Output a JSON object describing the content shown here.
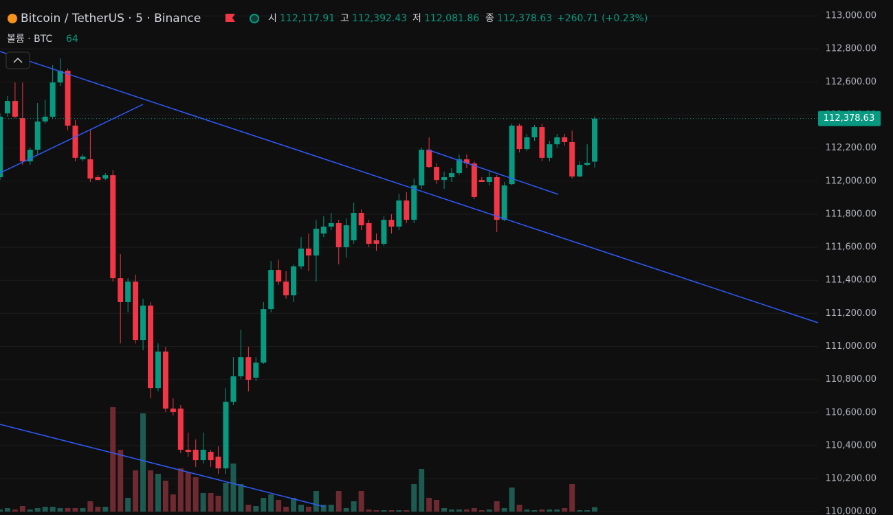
{
  "header": {
    "title": "Bitcoin / TetherUS · 5 · Binance",
    "open_label": "시",
    "open": "112,117.91",
    "high_label": "고",
    "high": "112,392.43",
    "low_label": "저",
    "low": "112,081.86",
    "close_label": "종",
    "close": "112,378.63",
    "change": "+260.71 (+0.23%)",
    "volume_label": "볼륨 · BTC",
    "price_tag": "112,378.63"
  },
  "chart_data": {
    "type": "candlestick",
    "up_color": "#089981",
    "down_color": "#f23645",
    "volume_up_color": "#1d5a52",
    "volume_down_color": "#6e2a30",
    "ylim": [
      109980,
      113096
    ],
    "yticks": [
      {
        "value": 113000,
        "label": "113,000.00"
      },
      {
        "value": 112800,
        "label": "112,800.00"
      },
      {
        "value": 112600,
        "label": "112,600.00"
      },
      {
        "value": 112400,
        "label": "112,400.00"
      },
      {
        "value": 112200,
        "label": "112,200.00"
      },
      {
        "value": 112000,
        "label": "112,000.00"
      },
      {
        "value": 111800,
        "label": "111,800.00"
      },
      {
        "value": 111600,
        "label": "111,600.00"
      },
      {
        "value": 111400,
        "label": "111,400.00"
      },
      {
        "value": 111200,
        "label": "111,200.00"
      },
      {
        "value": 111000,
        "label": "111,000.00"
      },
      {
        "value": 110800,
        "label": "110,800.00"
      },
      {
        "value": 110600,
        "label": "110,600.00"
      },
      {
        "value": 110400,
        "label": "110,400.00"
      },
      {
        "value": 110200,
        "label": "110,200.00"
      },
      {
        "value": 110000,
        "label": "110,000.00"
      }
    ],
    "grid": true,
    "open": [
      112024,
      112410,
      112485,
      112381,
      112120,
      112190,
      112361,
      112390,
      112597,
      112668,
      112336,
      112132,
      112132,
      112024,
      112016,
      112036,
      111413,
      111268,
      111392,
      111039,
      111247,
      110748,
      110969,
      110624,
      110624,
      110375,
      110375,
      110312,
      110362,
      110333,
      110262,
      110665,
      110819,
      110935,
      110811,
      110902,
      111226,
      111463,
      111392,
      111309,
      111484,
      111592,
      111550,
      111683,
      111725,
      111746,
      111600,
      111642,
      111808,
      111746,
      111642,
      111621,
      111766,
      111725,
      111883,
      111766,
      111974,
      112190,
      112086,
      112007,
      112024,
      112049,
      112132,
      112107,
      112007,
      111995,
      112024,
      111766,
      111982,
      112336,
      112194,
      112265,
      112327,
      112141,
      112223,
      112265,
      112236,
      112028,
      112099,
      112117.91
    ],
    "high": [
      112410,
      112514,
      112597,
      112597,
      112203,
      112473,
      112493,
      112701,
      112743,
      112680,
      112369,
      112161,
      112307,
      112036,
      112049,
      112066,
      111559,
      111413,
      111434,
      111289,
      111268,
      111018,
      110998,
      110686,
      110645,
      110478,
      110437,
      110478,
      110375,
      110395,
      110748,
      110935,
      111101,
      110998,
      110935,
      111268,
      111517,
      111525,
      111455,
      111496,
      111662,
      111683,
      111766,
      111787,
      111808,
      111766,
      111775,
      111870,
      111829,
      111766,
      111683,
      111787,
      111800,
      111924,
      111933,
      112016,
      112203,
      112265,
      112107,
      112057,
      112078,
      112161,
      112161,
      112120,
      112024,
      112057,
      112036,
      111995,
      112348,
      112348,
      112286,
      112340,
      112348,
      112244,
      112286,
      112286,
      112307,
      112120,
      112223,
      112392.43
    ],
    "low": [
      112007,
      112390,
      112381,
      112099,
      112099,
      112161,
      112348,
      112381,
      112577,
      112307,
      112120,
      112120,
      111995,
      112007,
      112007,
      111392,
      111018,
      111206,
      111018,
      110977,
      110686,
      110728,
      110603,
      110582,
      110354,
      110333,
      110271,
      110291,
      110271,
      110229,
      110229,
      110645,
      110802,
      110728,
      110790,
      110894,
      111206,
      111372,
      111289,
      111268,
      111467,
      111455,
      111392,
      111662,
      111704,
      111496,
      111538,
      111621,
      111704,
      111600,
      111579,
      111608,
      111683,
      111704,
      111746,
      111746,
      111953,
      112078,
      111982,
      111953,
      111995,
      112036,
      112078,
      111891,
      111995,
      111974,
      111692,
      111758,
      111974,
      112174,
      112182,
      112244,
      112120,
      112120,
      112203,
      112215,
      112016,
      112024,
      112090,
      112081.86
    ],
    "close": [
      112390,
      112485,
      112390,
      112120,
      112190,
      112361,
      112390,
      112597,
      112668,
      112336,
      112141,
      112149,
      112016,
      112007,
      112036,
      111413,
      111268,
      111392,
      111039,
      111247,
      110748,
      110969,
      110624,
      110603,
      110375,
      110362,
      110312,
      110375,
      110312,
      110262,
      110665,
      110819,
      110935,
      110798,
      110902,
      111226,
      111463,
      111392,
      111309,
      111484,
      111592,
      111550,
      111712,
      111725,
      111746,
      111600,
      111733,
      111808,
      111733,
      111621,
      111621,
      111766,
      111725,
      111883,
      111766,
      111974,
      112190,
      112086,
      112007,
      112024,
      112049,
      112132,
      112107,
      111904,
      111995,
      112024,
      111766,
      111974,
      112336,
      112194,
      112265,
      112327,
      112141,
      112223,
      112265,
      112236,
      112028,
      112099,
      112111,
      112378.63
    ],
    "volume": [
      30,
      50,
      30,
      80,
      30,
      50,
      70,
      70,
      50,
      50,
      50,
      50,
      150,
      70,
      70,
      1520,
      900,
      200,
      600,
      1430,
      600,
      550,
      450,
      250,
      630,
      570,
      500,
      270,
      270,
      230,
      420,
      700,
      400,
      100,
      80,
      200,
      250,
      170,
      70,
      200,
      100,
      70,
      300,
      100,
      100,
      300,
      50,
      150,
      300,
      30,
      20,
      20,
      20,
      20,
      20,
      400,
      620,
      200,
      170,
      50,
      30,
      30,
      30,
      50,
      20,
      30,
      150,
      50,
      350,
      100,
      30,
      20,
      30,
      30,
      30,
      50,
      400,
      20,
      20,
      64
    ]
  }
}
